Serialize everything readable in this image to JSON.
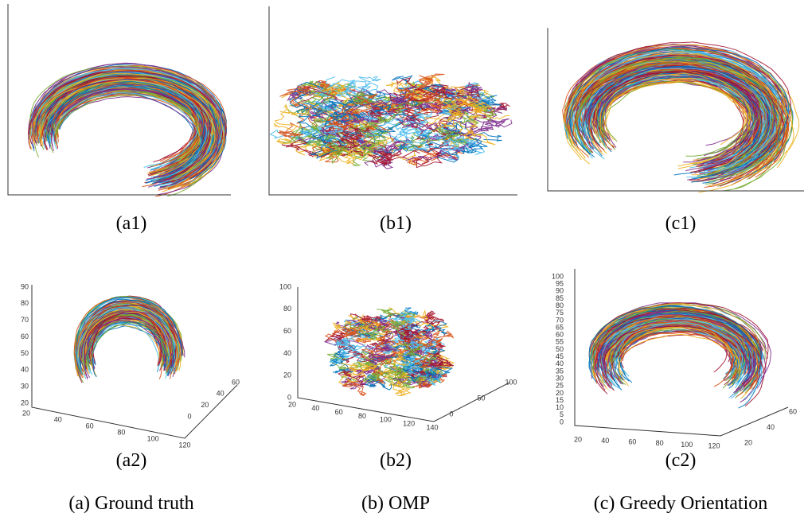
{
  "top_panels": [
    {
      "label": "(a1)"
    },
    {
      "label": "(b1)"
    },
    {
      "label": "(c1)"
    }
  ],
  "bottom_panels": [
    {
      "label": "(a2)",
      "z_ticks": [
        "20",
        "30",
        "40",
        "50",
        "60",
        "70",
        "80",
        "90"
      ],
      "x_ticks": [
        "20",
        "40",
        "60",
        "80",
        "100",
        "120"
      ],
      "y_ticks": [
        "0",
        "20",
        "40",
        "60"
      ]
    },
    {
      "label": "(b2)",
      "z_ticks": [
        "0",
        "20",
        "40",
        "60",
        "80",
        "100"
      ],
      "x_ticks": [
        "20",
        "40",
        "60",
        "80",
        "100",
        "120",
        "140"
      ],
      "y_ticks": [
        "0",
        "50",
        "100"
      ]
    },
    {
      "label": "(c2)",
      "z_ticks": [
        "0",
        "5",
        "10",
        "15",
        "20",
        "25",
        "30",
        "35",
        "40",
        "45",
        "50",
        "55",
        "60",
        "65",
        "70",
        "75",
        "80",
        "85",
        "90",
        "95",
        "100"
      ],
      "x_ticks": [
        "20",
        "40",
        "60",
        "80",
        "100",
        "120"
      ],
      "y_ticks": [
        "20",
        "40",
        "60"
      ]
    }
  ],
  "captions": [
    "(a) Ground truth",
    "(b) OMP",
    "(c) Greedy Orientation"
  ]
}
